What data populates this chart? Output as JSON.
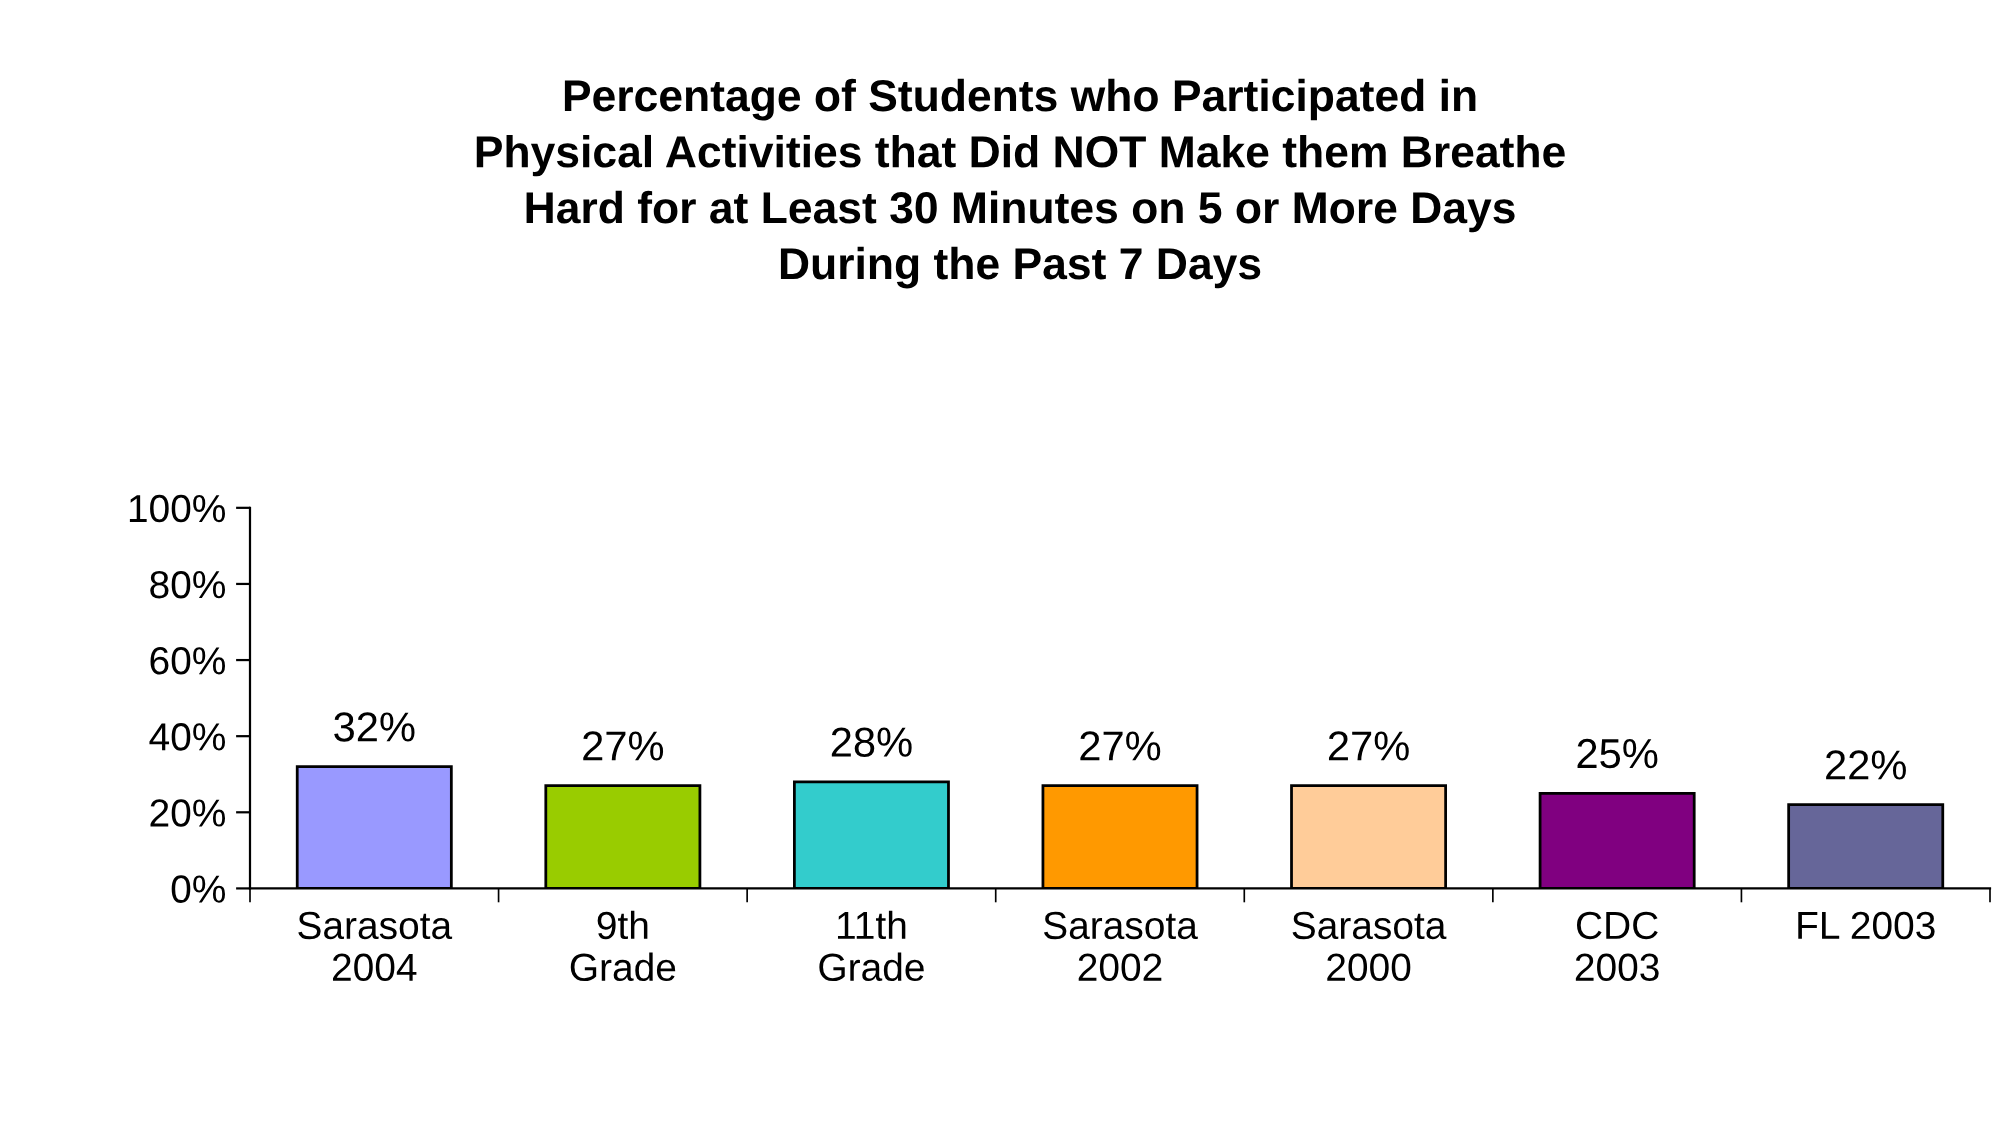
{
  "chart_data": {
    "type": "bar",
    "title": "Percentage of Students who Participated in\nPhysical Activities that Did NOT Make them Breathe\nHard for at Least 30 Minutes on 5 or More Days\nDuring the Past 7 Days",
    "categories": [
      "Sarasota\n2004",
      "9th\nGrade",
      "11th\nGrade",
      "Sarasota\n2002",
      "Sarasota\n2000",
      "CDC\n2003",
      "FL 2003"
    ],
    "values": [
      32,
      27,
      28,
      27,
      27,
      25,
      22
    ],
    "value_labels": [
      "32%",
      "27%",
      "28%",
      "27%",
      "27%",
      "25%",
      "22%"
    ],
    "colors": [
      "#9999ff",
      "#99cc00",
      "#33cccc",
      "#ff9900",
      "#ffcc99",
      "#800080",
      "#666699"
    ],
    "ylim": [
      0,
      100
    ],
    "yticks": [
      {
        "value": 0,
        "label": "0%"
      },
      {
        "value": 20,
        "label": "20%"
      },
      {
        "value": 40,
        "label": "40%"
      },
      {
        "value": 60,
        "label": "60%"
      },
      {
        "value": 80,
        "label": "80%"
      },
      {
        "value": 100,
        "label": "100%"
      }
    ],
    "grid": false,
    "legend": false
  }
}
